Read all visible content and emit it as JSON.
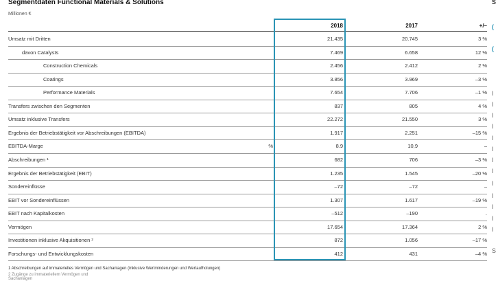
{
  "title": "Segmentdaten Functional Materials & Solutions",
  "unit": "Millionen €",
  "columns": {
    "y2018": "2018",
    "y2017": "2017",
    "diff": "+/–"
  },
  "rows": [
    {
      "label": "Umsatz mit Dritten",
      "unit": "",
      "y2018": "21.435",
      "y2017": "20.745",
      "diff": "3 %"
    },
    {
      "label": "davon  Catalysts",
      "unit": "",
      "y2018": "7.469",
      "y2017": "6.658",
      "diff": "12 %"
    },
    {
      "label": "Construction Chemicals",
      "unit": "",
      "y2018": "2.456",
      "y2017": "2.412",
      "diff": "2 %"
    },
    {
      "label": "Coatings",
      "unit": "",
      "y2018": "3.856",
      "y2017": "3.969",
      "diff": "–3 %"
    },
    {
      "label": "Performance Materials",
      "unit": "",
      "y2018": "7.654",
      "y2017": "7.706",
      "diff": "–1 %"
    },
    {
      "label": "Transfers zwischen den Segmenten",
      "unit": "",
      "y2018": "837",
      "y2017": "805",
      "diff": "4 %"
    },
    {
      "label": "Umsatz inklusive Transfers",
      "unit": "",
      "y2018": "22.272",
      "y2017": "21.550",
      "diff": "3 %"
    },
    {
      "label": "Ergebnis der Betriebstätigkeit vor Abschreibungen (EBITDA)",
      "unit": "",
      "y2018": "1.917",
      "y2017": "2.251",
      "diff": "–15 %"
    },
    {
      "label": "EBITDA-Marge",
      "unit": "%",
      "y2018": "8.9",
      "y2017": "10,9",
      "diff": "–"
    },
    {
      "label": "Abschreibungen ¹",
      "unit": "",
      "y2018": "682",
      "y2017": "706",
      "diff": "–3 %"
    },
    {
      "label": "Ergebnis der Betriebstätigkeit (EBIT)",
      "unit": "",
      "y2018": "1.235",
      "y2017": "1.545",
      "diff": "–20 %"
    },
    {
      "label": "Sondereinflüsse",
      "unit": "",
      "y2018": "–72",
      "y2017": "–72",
      "diff": "–"
    },
    {
      "label": "EBIT vor Sondereinflüssen",
      "unit": "",
      "y2018": "1.307",
      "y2017": "1.617",
      "diff": "–19 %"
    },
    {
      "label": "EBIT nach Kapitalkosten",
      "unit": "",
      "y2018": "–512",
      "y2017": "–190",
      "diff": "."
    },
    {
      "label": "Vermögen",
      "unit": "",
      "y2018": "17.654",
      "y2017": "17.364",
      "diff": "2 %"
    },
    {
      "label": "Investitionen inklusive Akquisitionen ²",
      "unit": "",
      "y2018": "872",
      "y2017": "1.056",
      "diff": "–17 %"
    },
    {
      "label": "Forschungs- und Entwicklungskosten",
      "unit": "",
      "y2018": "412",
      "y2017": "431",
      "diff": "–4 %"
    }
  ],
  "footnotes": [
    "1  Abschreibungen auf immaterielles Vermögen und Sachanlagen (inklusive Wertminderungen und Wertaufholungen)",
    "2  Zugänge zu immateriellem Vermögen und Sachanlagen"
  ],
  "edge_marks": [
    "S",
    "(",
    "(",
    "I",
    "I",
    "I",
    "I",
    "I",
    "I",
    "I",
    "I",
    "I",
    "I",
    "I",
    "I",
    "I",
    "S"
  ],
  "highlight_color": "#2a94b5"
}
